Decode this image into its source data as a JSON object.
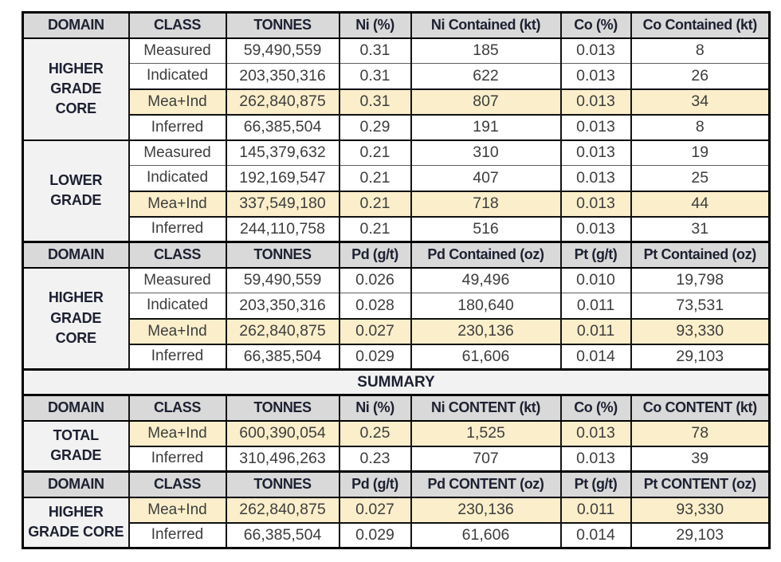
{
  "colors": {
    "highlight_row_bg": "#FBEFCB",
    "header_bg": "#D9D9D9",
    "domain_cell_bg": "#F2F2F2",
    "grid_border": "#000000",
    "header_text": "#1c2030",
    "value_text": "#3d3d3d"
  },
  "table": {
    "sections": [
      {
        "type": "header",
        "cells": [
          "DOMAIN",
          "CLASS",
          "TONNES",
          "Ni (%)",
          "Ni Contained (kt)",
          "Co (%)",
          "Co Contained (kt)"
        ]
      },
      {
        "type": "group",
        "domain_lines": [
          "HIGHER",
          "GRADE",
          "CORE"
        ],
        "rows": [
          {
            "class_label": "Measured",
            "values": [
              "59,490,559",
              "0.31",
              "185",
              "0.013",
              "8"
            ],
            "highlight": false
          },
          {
            "class_label": "Indicated",
            "values": [
              "203,350,316",
              "0.31",
              "622",
              "0.013",
              "26"
            ],
            "highlight": false
          },
          {
            "class_label": "Mea+Ind",
            "values": [
              "262,840,875",
              "0.31",
              "807",
              "0.013",
              "34"
            ],
            "highlight": true
          },
          {
            "class_label": "Inferred",
            "values": [
              "66,385,504",
              "0.29",
              "191",
              "0.013",
              "8"
            ],
            "highlight": false
          }
        ]
      },
      {
        "type": "group",
        "domain_lines": [
          "LOWER",
          "GRADE"
        ],
        "rows": [
          {
            "class_label": "Measured",
            "values": [
              "145,379,632",
              "0.21",
              "310",
              "0.013",
              "19"
            ],
            "highlight": false
          },
          {
            "class_label": "Indicated",
            "values": [
              "192,169,547",
              "0.21",
              "407",
              "0.013",
              "25"
            ],
            "highlight": false
          },
          {
            "class_label": "Mea+Ind",
            "values": [
              "337,549,180",
              "0.21",
              "718",
              "0.013",
              "44"
            ],
            "highlight": true
          },
          {
            "class_label": "Inferred",
            "values": [
              "244,110,758",
              "0.21",
              "516",
              "0.013",
              "31"
            ],
            "highlight": false
          }
        ]
      },
      {
        "type": "header",
        "cells": [
          "DOMAIN",
          "CLASS",
          "TONNES",
          "Pd (g/t)",
          "Pd Contained (oz)",
          "Pt (g/t)",
          "Pt Contained (oz)"
        ]
      },
      {
        "type": "group",
        "domain_lines": [
          "HIGHER",
          "GRADE",
          "CORE"
        ],
        "rows": [
          {
            "class_label": "Measured",
            "values": [
              "59,490,559",
              "0.026",
              "49,496",
              "0.010",
              "19,798"
            ],
            "highlight": false
          },
          {
            "class_label": "Indicated",
            "values": [
              "203,350,316",
              "0.028",
              "180,640",
              "0.011",
              "73,531"
            ],
            "highlight": false
          },
          {
            "class_label": "Mea+Ind",
            "values": [
              "262,840,875",
              "0.027",
              "230,136",
              "0.011",
              "93,330"
            ],
            "highlight": true
          },
          {
            "class_label": "Inferred",
            "values": [
              "66,385,504",
              "0.029",
              "61,606",
              "0.014",
              "29,103"
            ],
            "highlight": false
          }
        ]
      },
      {
        "type": "summary",
        "label": "SUMMARY"
      },
      {
        "type": "header",
        "cells": [
          "DOMAIN",
          "CLASS",
          "TONNES",
          "Ni (%)",
          "Ni CONTENT (kt)",
          "Co (%)",
          "Co CONTENT (kt)"
        ]
      },
      {
        "type": "group",
        "domain_lines": [
          "TOTAL",
          "GRADE"
        ],
        "rows": [
          {
            "class_label": "Mea+Ind",
            "values": [
              "600,390,054",
              "0.25",
              "1,525",
              "0.013",
              "78"
            ],
            "highlight": true
          },
          {
            "class_label": "Inferred",
            "values": [
              "310,496,263",
              "0.23",
              "707",
              "0.013",
              "39"
            ],
            "highlight": false
          }
        ]
      },
      {
        "type": "header",
        "cells": [
          "DOMAIN",
          "CLASS",
          "TONNES",
          "Pd (g/t)",
          "Pd CONTENT (oz)",
          "Pt (g/t)",
          "Pt CONTENT (oz)"
        ]
      },
      {
        "type": "group",
        "domain_lines": [
          "HIGHER",
          "GRADE CORE"
        ],
        "rows": [
          {
            "class_label": "Mea+Ind",
            "values": [
              "262,840,875",
              "0.027",
              "230,136",
              "0.011",
              "93,330"
            ],
            "highlight": true
          },
          {
            "class_label": "Inferred",
            "values": [
              "66,385,504",
              "0.029",
              "61,606",
              "0.014",
              "29,103"
            ],
            "highlight": false
          }
        ]
      }
    ]
  }
}
